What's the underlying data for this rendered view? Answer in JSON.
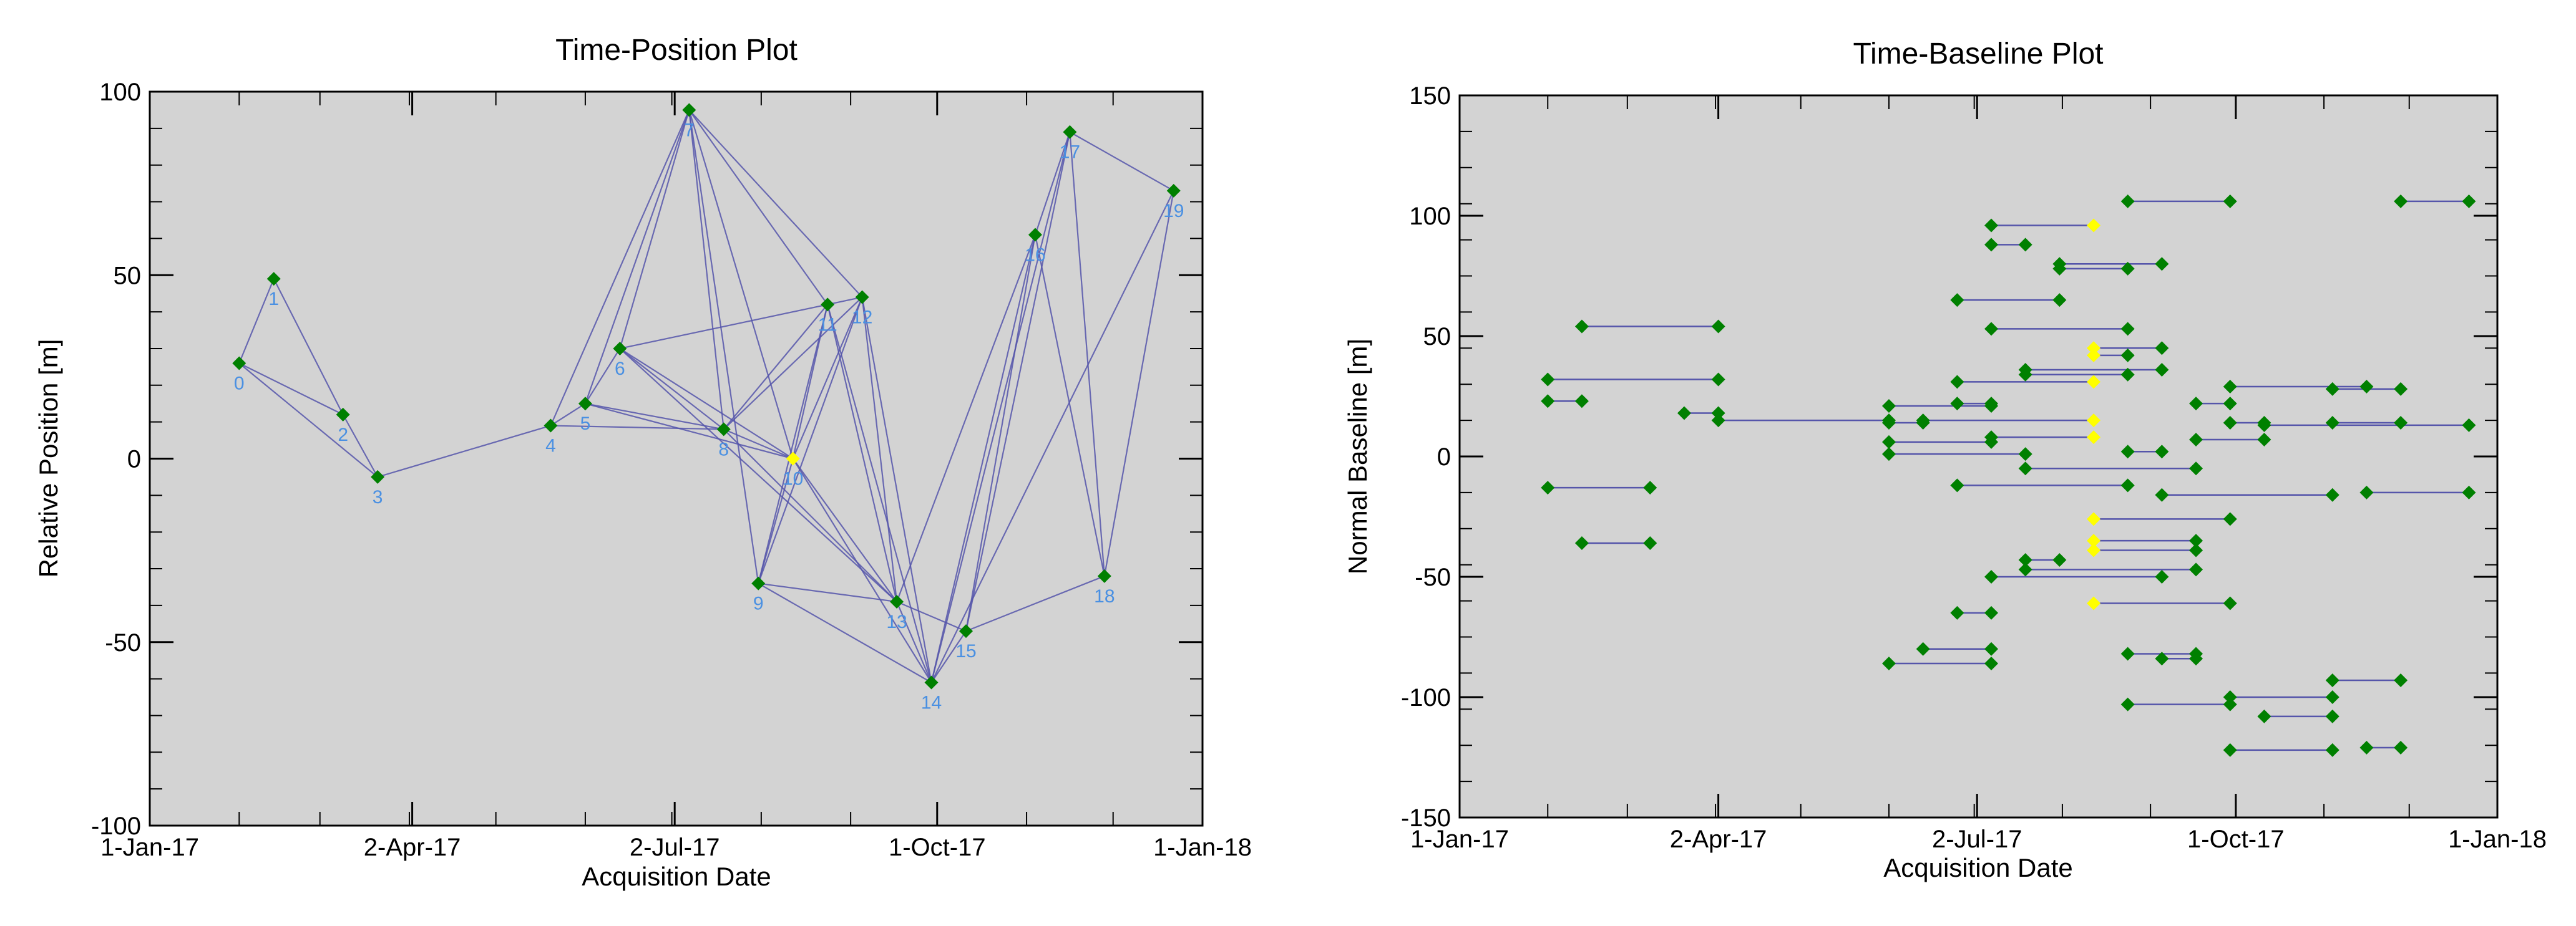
{
  "chart_data": [
    {
      "type": "scatter",
      "title": "Time-Position Plot",
      "xlabel": "Acquisition Date",
      "ylabel": "Relative Position [m]",
      "x_ticks": [
        "1-Jan-17",
        "2-Apr-17",
        "2-Jul-17",
        "1-Oct-17",
        "1-Jan-18"
      ],
      "x_tick_dates": [
        "2017-01-01",
        "2017-04-02",
        "2017-07-02",
        "2017-10-01",
        "2018-01-01"
      ],
      "xlim": [
        "2017-01-01",
        "2018-01-01"
      ],
      "y_ticks": [
        "100",
        "50",
        "0",
        "-50",
        "-100"
      ],
      "ylim": [
        -100,
        100
      ],
      "grid": false,
      "colors": {
        "background": "#d3d3d3",
        "point": "#008000",
        "master": "#ffff00",
        "edge": "#5555aa",
        "label": "#4a90e2"
      },
      "points": [
        {
          "id": "0",
          "date": "2017-02-01",
          "value": 26
        },
        {
          "id": "1",
          "date": "2017-02-13",
          "value": 49
        },
        {
          "id": "2",
          "date": "2017-03-09",
          "value": 12
        },
        {
          "id": "3",
          "date": "2017-03-21",
          "value": -5
        },
        {
          "id": "4",
          "date": "2017-05-20",
          "value": 9
        },
        {
          "id": "5",
          "date": "2017-06-01",
          "value": 15
        },
        {
          "id": "6",
          "date": "2017-06-13",
          "value": 30
        },
        {
          "id": "7",
          "date": "2017-07-07",
          "value": 95
        },
        {
          "id": "8",
          "date": "2017-07-19",
          "value": 8
        },
        {
          "id": "9",
          "date": "2017-07-31",
          "value": -34
        },
        {
          "id": "10",
          "date": "2017-08-12",
          "value": 0,
          "master": true
        },
        {
          "id": "11",
          "date": "2017-08-24",
          "value": 42
        },
        {
          "id": "12",
          "date": "2017-09-05",
          "value": 44
        },
        {
          "id": "13",
          "date": "2017-09-17",
          "value": -39
        },
        {
          "id": "14",
          "date": "2017-09-29",
          "value": -61
        },
        {
          "id": "15",
          "date": "2017-10-11",
          "value": -47
        },
        {
          "id": "16",
          "date": "2017-11-04",
          "value": 61
        },
        {
          "id": "17",
          "date": "2017-11-16",
          "value": 89
        },
        {
          "id": "18",
          "date": "2017-11-28",
          "value": -32
        },
        {
          "id": "19",
          "date": "2017-12-22",
          "value": 73
        }
      ],
      "edges": [
        [
          0,
          1
        ],
        [
          0,
          2
        ],
        [
          0,
          3
        ],
        [
          1,
          2
        ],
        [
          2,
          3
        ],
        [
          3,
          4
        ],
        [
          4,
          5
        ],
        [
          4,
          7
        ],
        [
          4,
          8
        ],
        [
          5,
          6
        ],
        [
          5,
          7
        ],
        [
          5,
          8
        ],
        [
          6,
          7
        ],
        [
          6,
          8
        ],
        [
          6,
          10
        ],
        [
          6,
          12
        ],
        [
          6,
          13
        ],
        [
          7,
          8
        ],
        [
          7,
          9
        ],
        [
          7,
          10
        ],
        [
          7,
          12
        ],
        [
          7,
          11
        ],
        [
          8,
          10
        ],
        [
          8,
          11
        ],
        [
          8,
          12
        ],
        [
          8,
          13
        ],
        [
          9,
          10
        ],
        [
          9,
          11
        ],
        [
          9,
          12
        ],
        [
          9,
          13
        ],
        [
          9,
          14
        ],
        [
          10,
          11
        ],
        [
          10,
          12
        ],
        [
          10,
          13
        ],
        [
          10,
          14
        ],
        [
          11,
          13
        ],
        [
          11,
          14
        ],
        [
          12,
          13
        ],
        [
          12,
          14
        ],
        [
          13,
          14
        ],
        [
          13,
          15
        ],
        [
          13,
          16
        ],
        [
          14,
          15
        ],
        [
          14,
          16
        ],
        [
          14,
          17
        ],
        [
          14,
          19
        ],
        [
          15,
          16
        ],
        [
          15,
          17
        ],
        [
          15,
          18
        ],
        [
          16,
          17
        ],
        [
          16,
          18
        ],
        [
          17,
          18
        ],
        [
          17,
          19
        ],
        [
          18,
          19
        ],
        [
          5,
          10
        ]
      ]
    },
    {
      "type": "scatter",
      "title": "Time-Baseline Plot",
      "xlabel": "Acquisition Date",
      "ylabel": "Normal Baseline [m]",
      "x_ticks": [
        "1-Jan-17",
        "2-Apr-17",
        "2-Jul-17",
        "1-Oct-17",
        "1-Jan-18"
      ],
      "x_tick_dates": [
        "2017-01-01",
        "2017-04-02",
        "2017-07-02",
        "2017-10-01",
        "2018-01-01"
      ],
      "xlim": [
        "2017-01-01",
        "2018-01-01"
      ],
      "y_ticks": [
        "150",
        "100",
        "50",
        "0",
        "-50",
        "-100",
        "-150"
      ],
      "ylim": [
        -150,
        150
      ],
      "grid": false,
      "colors": {
        "background": "#d3d3d3",
        "point": "#008000",
        "master": "#ffff00",
        "edge": "#5555aa"
      },
      "pairs": [
        {
          "x1": "2017-02-13",
          "x2": "2017-04-02",
          "y": 54
        },
        {
          "x1": "2017-02-01",
          "x2": "2017-04-02",
          "y": 32
        },
        {
          "x1": "2017-02-01",
          "x2": "2017-02-13",
          "y": 23
        },
        {
          "x1": "2017-03-21",
          "x2": "2017-04-02",
          "y": 18
        },
        {
          "x1": "2017-04-02",
          "x2": "2017-06-01",
          "y": 15
        },
        {
          "x1": "2017-02-01",
          "x2": "2017-03-09",
          "y": -13
        },
        {
          "x1": "2017-02-13",
          "x2": "2017-03-09",
          "y": -36
        },
        {
          "x1": "2017-07-07",
          "x2": "2017-08-12",
          "y": 96,
          "m2": true
        },
        {
          "x1": "2017-07-07",
          "x2": "2017-07-19",
          "y": 88
        },
        {
          "x1": "2017-07-31",
          "x2": "2017-08-24",
          "y": 78
        },
        {
          "x1": "2017-07-31",
          "x2": "2017-09-05",
          "y": 80
        },
        {
          "x1": "2017-08-24",
          "x2": "2017-09-29",
          "y": 106
        },
        {
          "x1": "2017-11-28",
          "x2": "2017-12-22",
          "y": 106
        },
        {
          "x1": "2017-06-25",
          "x2": "2017-07-31",
          "y": 65
        },
        {
          "x1": "2017-07-07",
          "x2": "2017-08-24",
          "y": 53
        },
        {
          "x1": "2017-08-12",
          "x2": "2017-09-05",
          "y": 45,
          "m1": true
        },
        {
          "x1": "2017-08-12",
          "x2": "2017-08-24",
          "y": 42,
          "m1": true
        },
        {
          "x1": "2017-07-19",
          "x2": "2017-09-05",
          "y": 36
        },
        {
          "x1": "2017-07-19",
          "x2": "2017-08-24",
          "y": 34
        },
        {
          "x1": "2017-06-25",
          "x2": "2017-08-12",
          "y": 31,
          "m2": true
        },
        {
          "x1": "2017-09-29",
          "x2": "2017-11-16",
          "y": 29
        },
        {
          "x1": "2017-11-04",
          "x2": "2017-11-28",
          "y": 28
        },
        {
          "x1": "2017-06-01",
          "x2": "2017-07-07",
          "y": 21
        },
        {
          "x1": "2017-06-25",
          "x2": "2017-07-07",
          "y": 22
        },
        {
          "x1": "2017-09-17",
          "x2": "2017-09-29",
          "y": 22
        },
        {
          "x1": "2017-06-13",
          "x2": "2017-08-12",
          "y": 15,
          "m2": true
        },
        {
          "x1": "2017-06-01",
          "x2": "2017-06-13",
          "y": 14
        },
        {
          "x1": "2017-09-29",
          "x2": "2017-10-11",
          "y": 14
        },
        {
          "x1": "2017-10-11",
          "x2": "2017-12-22",
          "y": 13
        },
        {
          "x1": "2017-11-04",
          "x2": "2017-11-28",
          "y": 14
        },
        {
          "x1": "2017-07-07",
          "x2": "2017-08-12",
          "y": 8,
          "m2": true
        },
        {
          "x1": "2017-06-01",
          "x2": "2017-07-07",
          "y": 6
        },
        {
          "x1": "2017-09-17",
          "x2": "2017-10-11",
          "y": 7
        },
        {
          "x1": "2017-06-01",
          "x2": "2017-07-19",
          "y": 1
        },
        {
          "x1": "2017-08-24",
          "x2": "2017-09-05",
          "y": 2
        },
        {
          "x1": "2017-07-19",
          "x2": "2017-09-17",
          "y": -5
        },
        {
          "x1": "2017-06-25",
          "x2": "2017-08-24",
          "y": -12
        },
        {
          "x1": "2017-09-05",
          "x2": "2017-11-04",
          "y": -16
        },
        {
          "x1": "2017-11-16",
          "x2": "2017-12-22",
          "y": -15
        },
        {
          "x1": "2017-08-12",
          "x2": "2017-09-29",
          "y": -26,
          "m1": true
        },
        {
          "x1": "2017-08-12",
          "x2": "2017-09-17",
          "y": -35,
          "m1": true
        },
        {
          "x1": "2017-08-12",
          "x2": "2017-09-17",
          "y": -39,
          "m1": true
        },
        {
          "x1": "2017-07-19",
          "x2": "2017-07-31",
          "y": -43
        },
        {
          "x1": "2017-07-19",
          "x2": "2017-09-17",
          "y": -47
        },
        {
          "x1": "2017-07-07",
          "x2": "2017-09-05",
          "y": -50
        },
        {
          "x1": "2017-08-12",
          "x2": "2017-09-29",
          "y": -61,
          "m1": true
        },
        {
          "x1": "2017-06-25",
          "x2": "2017-07-07",
          "y": -65
        },
        {
          "x1": "2017-06-13",
          "x2": "2017-07-07",
          "y": -80
        },
        {
          "x1": "2017-06-01",
          "x2": "2017-07-07",
          "y": -86
        },
        {
          "x1": "2017-08-24",
          "x2": "2017-09-17",
          "y": -82
        },
        {
          "x1": "2017-09-05",
          "x2": "2017-09-17",
          "y": -84
        },
        {
          "x1": "2017-08-24",
          "x2": "2017-09-29",
          "y": -103
        },
        {
          "x1": "2017-09-29",
          "x2": "2017-11-04",
          "y": -100
        },
        {
          "x1": "2017-10-11",
          "x2": "2017-11-04",
          "y": -108
        },
        {
          "x1": "2017-11-04",
          "x2": "2017-11-28",
          "y": -93
        },
        {
          "x1": "2017-09-29",
          "x2": "2017-11-04",
          "y": -122
        },
        {
          "x1": "2017-11-16",
          "x2": "2017-11-28",
          "y": -121
        }
      ]
    }
  ]
}
